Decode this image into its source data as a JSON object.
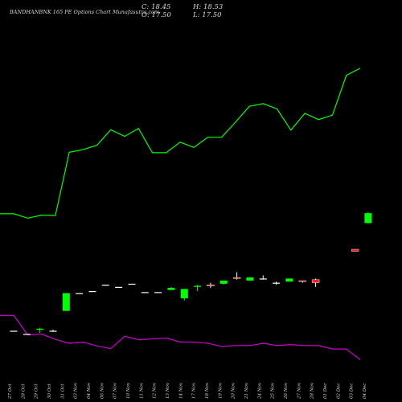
{
  "header": {
    "title": "BANDHANBNK 165 PE Options Chart Munafasutra.com",
    "close": "C: 18.45",
    "high": "H: 18.53",
    "open": "O: 17.50",
    "low": "L: 17.50"
  },
  "colors": {
    "background": "#000000",
    "up": "#00ff00",
    "down": "#ff2020",
    "flat": "#ffffff",
    "line_upper": "#00ff00",
    "line_lower": "#cc00cc",
    "text": "#d8d8d8"
  },
  "chart_data": {
    "type": "candlestick",
    "categories": [
      "27 Oct",
      "28 Oct",
      "29 Oct",
      "30 Oct",
      "31 Oct",
      "03 Nov",
      "04 Nov",
      "06 Nov",
      "07 Nov",
      "10 Nov",
      "11 Nov",
      "12 Nov",
      "13 Nov",
      "14 Nov",
      "17 Nov",
      "18 Nov",
      "19 Nov",
      "20 Nov",
      "21 Nov",
      "24 Nov",
      "25 Nov",
      "26 Nov",
      "27 Nov",
      "28 Nov",
      "01 Dec",
      "02 Dec",
      "03 Dec",
      "04 Dec"
    ],
    "candles": [
      {
        "o": 7.2,
        "h": 7.2,
        "l": 7.2,
        "c": 7.2
      },
      {
        "o": 6.9,
        "h": 6.9,
        "l": 6.9,
        "c": 6.9
      },
      {
        "o": 7.3,
        "h": 7.5,
        "l": 7.0,
        "c": 7.4
      },
      {
        "o": 7.2,
        "h": 7.3,
        "l": 7.1,
        "c": 7.2
      },
      {
        "o": 9.1,
        "h": 10.8,
        "l": 9.1,
        "c": 10.8
      },
      {
        "o": 10.8,
        "h": 10.8,
        "l": 10.8,
        "c": 10.8
      },
      {
        "o": 11.0,
        "h": 11.0,
        "l": 11.0,
        "c": 11.0
      },
      {
        "o": 11.6,
        "h": 11.6,
        "l": 11.5,
        "c": 11.6
      },
      {
        "o": 11.4,
        "h": 11.4,
        "l": 11.4,
        "c": 11.4
      },
      {
        "o": 11.7,
        "h": 11.7,
        "l": 11.7,
        "c": 11.7
      },
      {
        "o": 10.9,
        "h": 10.9,
        "l": 10.9,
        "c": 10.9
      },
      {
        "o": 10.9,
        "h": 10.9,
        "l": 10.9,
        "c": 10.9
      },
      {
        "o": 11.1,
        "h": 11.4,
        "l": 11.1,
        "c": 11.3
      },
      {
        "o": 10.3,
        "h": 11.2,
        "l": 10.1,
        "c": 11.2
      },
      {
        "o": 11.4,
        "h": 11.6,
        "l": 11.0,
        "c": 11.5
      },
      {
        "o": 11.6,
        "h": 11.8,
        "l": 11.3,
        "c": 11.5
      },
      {
        "o": 11.7,
        "h": 12.0,
        "l": 11.6,
        "c": 12.0
      },
      {
        "o": 12.3,
        "h": 12.8,
        "l": 12.1,
        "c": 12.2
      },
      {
        "o": 12.0,
        "h": 12.3,
        "l": 12.0,
        "c": 12.3
      },
      {
        "o": 12.2,
        "h": 12.5,
        "l": 12.1,
        "c": 12.2
      },
      {
        "o": 11.8,
        "h": 11.9,
        "l": 11.6,
        "c": 11.8
      },
      {
        "o": 11.9,
        "h": 12.2,
        "l": 11.9,
        "c": 12.2
      },
      {
        "o": 12.0,
        "h": 12.0,
        "l": 11.8,
        "c": 11.9
      },
      {
        "o": 12.1,
        "h": 12.2,
        "l": 11.4,
        "c": 11.8
      },
      {
        "o": 15.0,
        "h": 15.0,
        "l": 14.8,
        "c": 14.8
      },
      {
        "o": 17.5,
        "h": 18.53,
        "l": 17.5,
        "c": 18.45
      }
    ],
    "candle_dates": [
      "27 Oct",
      "28 Oct",
      "29 Oct",
      "30 Oct",
      "31 Oct",
      "03 Nov",
      "04 Nov",
      "06 Nov",
      "07 Nov",
      "10 Nov",
      "11 Nov",
      "12 Nov",
      "13 Nov",
      "14 Nov",
      "17 Nov",
      "18 Nov",
      "19 Nov",
      "20 Nov",
      "21 Nov",
      "24 Nov",
      "25 Nov",
      "26 Nov",
      "27 Nov",
      "28 Nov",
      "03 Dec",
      "04 Dec"
    ],
    "line_upper": [
      353,
      353,
      343,
      350,
      349,
      492,
      498,
      508,
      543,
      528,
      546,
      491,
      491,
      515,
      503,
      526,
      526,
      560,
      596,
      602,
      590,
      542,
      580,
      566,
      576,
      666,
      682
    ],
    "line_lower": [
      123,
      123,
      79,
      81,
      69,
      60,
      63,
      54,
      48,
      76,
      68,
      70,
      72,
      63,
      63,
      60,
      53,
      55,
      55,
      60,
      55,
      57,
      55,
      55,
      47,
      47,
      23
    ],
    "line_x_index": [
      0,
      1,
      2,
      3,
      4,
      5,
      6,
      7,
      8,
      9,
      10,
      11,
      12,
      13,
      14,
      15,
      16,
      17,
      18,
      19,
      20,
      21,
      22,
      23,
      24,
      25,
      26
    ],
    "candle_range": [
      5.0,
      20.0
    ]
  }
}
